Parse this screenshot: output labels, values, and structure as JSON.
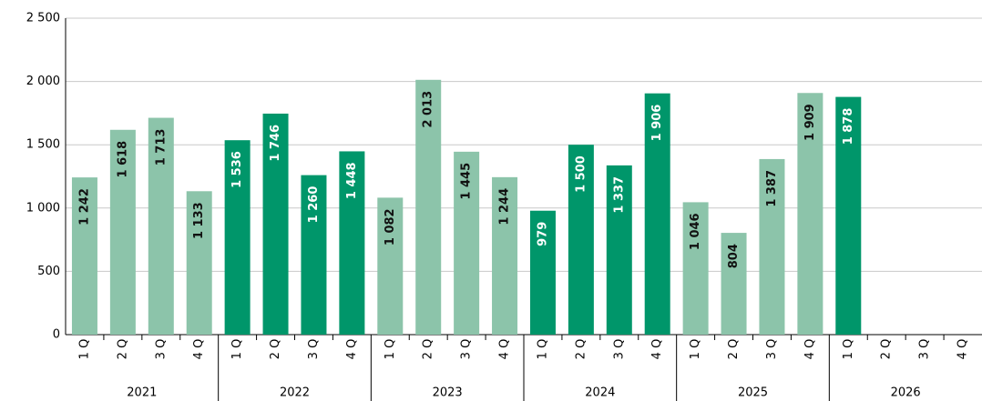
{
  "chart_data": {
    "type": "bar",
    "ylim": [
      0,
      2500
    ],
    "yticks": [
      0,
      500,
      {
        "value": 1000,
        "label": "1 000"
      },
      {
        "value": 1500,
        "label": "1 500"
      },
      {
        "value": 2000,
        "label": "2 000"
      },
      {
        "value": 2500,
        "label": "2 500"
      }
    ],
    "grid": true,
    "groups": [
      {
        "name": "2021",
        "color": "#8cc4aa",
        "categories": [
          "1 Q",
          "2 Q",
          "3 Q",
          "4 Q"
        ],
        "values": [
          1242,
          1618,
          1713,
          1133
        ],
        "value_labels": [
          "1 242",
          "1 618",
          "1 713",
          "1 133"
        ]
      },
      {
        "name": "2022",
        "color": "#00966a",
        "categories": [
          "1 Q",
          "2 Q",
          "3 Q",
          "4 Q"
        ],
        "values": [
          1536,
          1746,
          1260,
          1448
        ],
        "value_labels": [
          "1 536",
          "1 746",
          "1 260",
          "1 448"
        ]
      },
      {
        "name": "2023",
        "color": "#8cc4aa",
        "categories": [
          "1 Q",
          "2 Q",
          "3 Q",
          "4 Q"
        ],
        "values": [
          1082,
          2013,
          1445,
          1244
        ],
        "value_labels": [
          "1 082",
          "2 013",
          "1 445",
          "1 244"
        ]
      },
      {
        "name": "2024",
        "color": "#00966a",
        "categories": [
          "1 Q",
          "2 Q",
          "3 Q",
          "4 Q"
        ],
        "values": [
          979,
          1500,
          1337,
          1906
        ],
        "value_labels": [
          "979",
          "1 500",
          "1 337",
          "1 906"
        ]
      },
      {
        "name": "2025",
        "color": "#8cc4aa",
        "categories": [
          "1 Q",
          "2 Q",
          "3 Q",
          "4 Q"
        ],
        "values": [
          1046,
          804,
          1387,
          1909
        ],
        "value_labels": [
          "1 046",
          "804",
          "1 387",
          "1 909"
        ]
      },
      {
        "name": "2026",
        "color": "#00966a",
        "categories": [
          "1 Q",
          "2 Q",
          "3 Q",
          "4 Q"
        ],
        "values": [
          1878,
          null,
          null,
          null
        ],
        "value_labels": [
          "1 878",
          null,
          null,
          null
        ]
      }
    ]
  }
}
